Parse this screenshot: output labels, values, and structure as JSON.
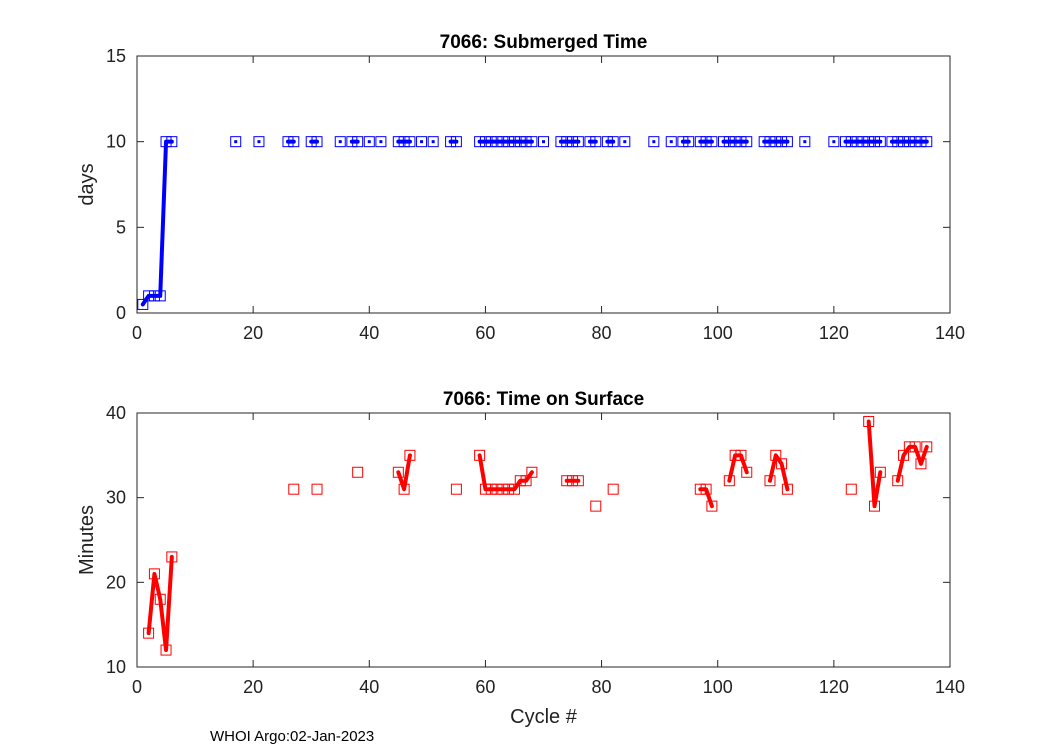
{
  "footer": "WHOI Argo:02-Jan-2023",
  "chart_data": [
    {
      "type": "line",
      "title": "7066: Submerged Time",
      "xlabel": "",
      "ylabel": "days",
      "xlim": [
        0,
        140
      ],
      "ylim": [
        0,
        15
      ],
      "xticks": [
        "0",
        "20",
        "40",
        "60",
        "80",
        "100",
        "120",
        "140"
      ],
      "yticks": [
        "0",
        "5",
        "10",
        "15"
      ],
      "grid": true,
      "color": "#0000ff",
      "x": [
        1,
        2,
        3,
        4,
        5,
        6,
        17,
        21,
        26,
        27,
        30,
        31,
        35,
        37,
        38,
        40,
        42,
        45,
        46,
        47,
        49,
        51,
        54,
        55,
        59,
        60,
        61,
        62,
        63,
        64,
        65,
        66,
        67,
        68,
        70,
        73,
        74,
        75,
        76,
        78,
        79,
        81,
        82,
        84,
        89,
        92,
        94,
        95,
        97,
        98,
        99,
        101,
        102,
        103,
        104,
        105,
        108,
        109,
        110,
        111,
        112,
        115,
        120,
        122,
        123,
        124,
        125,
        126,
        127,
        128,
        130,
        131,
        132,
        133,
        134,
        135,
        136
      ],
      "values": [
        0.5,
        1.0,
        1.0,
        1.0,
        10.0,
        10.0,
        10.0,
        10.0,
        10.0,
        10.0,
        10.0,
        10.0,
        10.0,
        10.0,
        10.0,
        10.0,
        10.0,
        10.0,
        10.0,
        10.0,
        10.0,
        10.0,
        10.0,
        10.0,
        10.0,
        10.0,
        10.0,
        10.0,
        10.0,
        10.0,
        10.0,
        10.0,
        10.0,
        10.0,
        10.0,
        10.0,
        10.0,
        10.0,
        10.0,
        10.0,
        10.0,
        10.0,
        10.0,
        10.0,
        10.0,
        10.0,
        10.0,
        10.0,
        10.0,
        10.0,
        10.0,
        10.0,
        10.0,
        10.0,
        10.0,
        10.0,
        10.0,
        10.0,
        10.0,
        10.0,
        10.0,
        10.0,
        10.0,
        10.0,
        10.0,
        10.0,
        10.0,
        10.0,
        10.0,
        10.0,
        10.0,
        10.0,
        10.0,
        10.0,
        10.0,
        10.0,
        10.0
      ]
    },
    {
      "type": "line",
      "title": "7066: Time on Surface",
      "xlabel": "Cycle #",
      "ylabel": "Minutes",
      "xlim": [
        0,
        140
      ],
      "ylim": [
        10,
        40
      ],
      "xticks": [
        "0",
        "20",
        "40",
        "60",
        "80",
        "100",
        "120",
        "140"
      ],
      "yticks": [
        "10",
        "20",
        "30",
        "40"
      ],
      "grid": true,
      "color": "#ff0000",
      "x": [
        2,
        3,
        4,
        5,
        6,
        27,
        31,
        38,
        45,
        46,
        47,
        55,
        59,
        60,
        61,
        62,
        63,
        64,
        65,
        66,
        67,
        68,
        74,
        75,
        76,
        79,
        82,
        97,
        98,
        99,
        102,
        103,
        104,
        105,
        109,
        110,
        111,
        112,
        123,
        126,
        127,
        128,
        131,
        132,
        133,
        134,
        135,
        136
      ],
      "values": [
        14,
        21,
        18,
        12,
        23,
        31,
        31,
        33,
        33,
        31,
        35,
        31,
        35,
        31,
        31,
        31,
        31,
        31,
        31,
        32,
        32,
        33,
        32,
        32,
        32,
        29,
        31,
        31,
        31,
        29,
        32,
        35,
        35,
        33,
        32,
        35,
        34,
        31,
        31,
        39,
        29,
        33,
        32,
        35,
        36,
        36,
        34,
        36
      ]
    }
  ]
}
